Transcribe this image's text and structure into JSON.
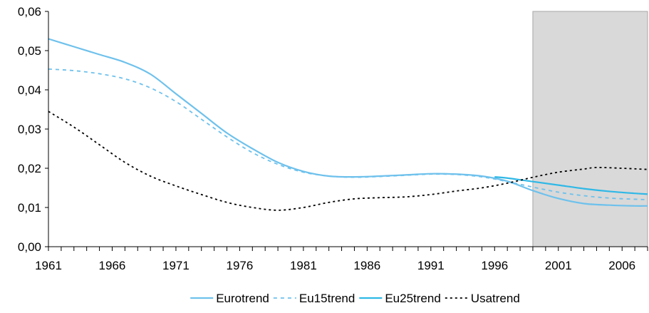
{
  "chart_data": {
    "type": "line",
    "title": "",
    "xlabel": "",
    "ylabel": "",
    "xlim": [
      1961,
      2008
    ],
    "ylim": [
      0,
      0.06
    ],
    "y_ticks": [
      {
        "value": 0.0,
        "label": "0,00"
      },
      {
        "value": 0.01,
        "label": "0,01"
      },
      {
        "value": 0.02,
        "label": "0,02"
      },
      {
        "value": 0.03,
        "label": "0,03"
      },
      {
        "value": 0.04,
        "label": "0,04"
      },
      {
        "value": 0.05,
        "label": "0,05"
      },
      {
        "value": 0.06,
        "label": "0,06"
      }
    ],
    "x_tick_labels": [
      {
        "value": 1961,
        "label": "1961"
      },
      {
        "value": 1966,
        "label": "1966"
      },
      {
        "value": 1971,
        "label": "1971"
      },
      {
        "value": 1976,
        "label": "1976"
      },
      {
        "value": 1981,
        "label": "1981"
      },
      {
        "value": 1986,
        "label": "1986"
      },
      {
        "value": 1991,
        "label": "1991"
      },
      {
        "value": 1996,
        "label": "1996"
      },
      {
        "value": 2001,
        "label": "2001"
      },
      {
        "value": 2006,
        "label": "2006"
      }
    ],
    "grid": false,
    "legend_position": "bottom",
    "shaded_region": {
      "x_start": 1999,
      "x_end": 2008,
      "color": "#d9d9d9"
    },
    "series": [
      {
        "name": "Eurotrend",
        "color": "#6ec1ec",
        "style": "solid",
        "points": [
          [
            1961,
            0.053
          ],
          [
            1963,
            0.051
          ],
          [
            1965,
            0.049
          ],
          [
            1967,
            0.047
          ],
          [
            1969,
            0.044
          ],
          [
            1971,
            0.039
          ],
          [
            1973,
            0.034
          ],
          [
            1975,
            0.029
          ],
          [
            1977,
            0.025
          ],
          [
            1979,
            0.0215
          ],
          [
            1981,
            0.0192
          ],
          [
            1983,
            0.018
          ],
          [
            1985,
            0.0178
          ],
          [
            1987,
            0.018
          ],
          [
            1989,
            0.0183
          ],
          [
            1991,
            0.0186
          ],
          [
            1993,
            0.0185
          ],
          [
            1995,
            0.018
          ],
          [
            1997,
            0.0167
          ],
          [
            1999,
            0.0143
          ],
          [
            2001,
            0.0123
          ],
          [
            2003,
            0.011
          ],
          [
            2005,
            0.0106
          ],
          [
            2007,
            0.0104
          ],
          [
            2008,
            0.0104
          ]
        ]
      },
      {
        "name": "Eu15trend",
        "color": "#6ec1ec",
        "style": "dashed",
        "points": [
          [
            1961,
            0.0453
          ],
          [
            1963,
            0.0449
          ],
          [
            1965,
            0.0441
          ],
          [
            1967,
            0.0428
          ],
          [
            1969,
            0.0405
          ],
          [
            1971,
            0.037
          ],
          [
            1973,
            0.0325
          ],
          [
            1975,
            0.028
          ],
          [
            1977,
            0.024
          ],
          [
            1979,
            0.021
          ],
          [
            1981,
            0.019
          ],
          [
            1983,
            0.018
          ],
          [
            1985,
            0.0177
          ],
          [
            1987,
            0.0179
          ],
          [
            1989,
            0.0182
          ],
          [
            1991,
            0.0185
          ],
          [
            1993,
            0.0184
          ],
          [
            1995,
            0.0178
          ],
          [
            1997,
            0.0166
          ],
          [
            1999,
            0.0152
          ],
          [
            2001,
            0.0139
          ],
          [
            2003,
            0.013
          ],
          [
            2005,
            0.0124
          ],
          [
            2007,
            0.0121
          ],
          [
            2008,
            0.012
          ]
        ]
      },
      {
        "name": "Eu25trend",
        "color": "#2fb8e6",
        "style": "solid",
        "points": [
          [
            1996,
            0.0178
          ],
          [
            1997,
            0.0175
          ],
          [
            1999,
            0.0166
          ],
          [
            2001,
            0.0157
          ],
          [
            2003,
            0.0148
          ],
          [
            2005,
            0.0141
          ],
          [
            2007,
            0.0136
          ],
          [
            2008,
            0.0134
          ]
        ]
      },
      {
        "name": "Usatrend",
        "color": "#000000",
        "style": "dotted",
        "points": [
          [
            1961,
            0.0345
          ],
          [
            1963,
            0.0305
          ],
          [
            1965,
            0.026
          ],
          [
            1967,
            0.0215
          ],
          [
            1969,
            0.018
          ],
          [
            1971,
            0.0155
          ],
          [
            1973,
            0.0133
          ],
          [
            1975,
            0.0113
          ],
          [
            1977,
            0.01
          ],
          [
            1979,
            0.0093
          ],
          [
            1981,
            0.01
          ],
          [
            1983,
            0.0113
          ],
          [
            1985,
            0.0122
          ],
          [
            1987,
            0.0125
          ],
          [
            1989,
            0.0127
          ],
          [
            1991,
            0.0133
          ],
          [
            1993,
            0.0142
          ],
          [
            1995,
            0.015
          ],
          [
            1997,
            0.0162
          ],
          [
            1999,
            0.0177
          ],
          [
            2001,
            0.019
          ],
          [
            2003,
            0.0198
          ],
          [
            2004,
            0.0202
          ],
          [
            2006,
            0.02
          ],
          [
            2008,
            0.0197
          ]
        ]
      }
    ]
  }
}
